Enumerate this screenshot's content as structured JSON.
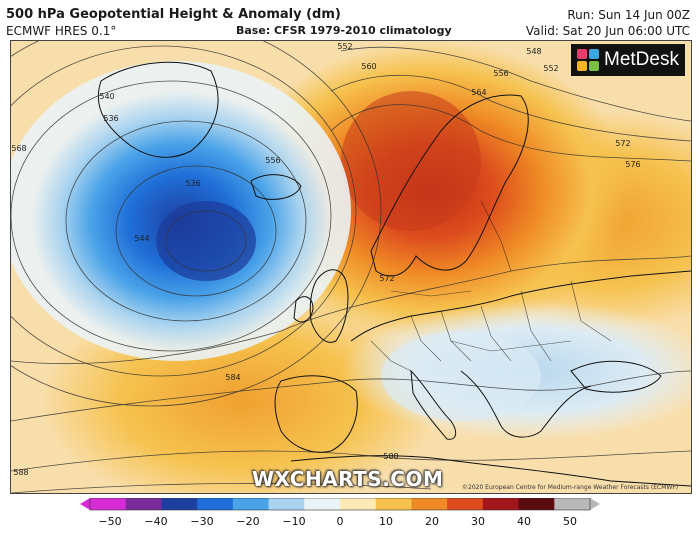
{
  "header": {
    "title": "500 hPa Geopotential Height & Anomaly (dm)",
    "model": "ECMWF HRES 0.1°",
    "base": "Base: CFSR 1979-2010 climatology",
    "run": "Run: Sun 14 Jun 00Z",
    "valid": "Valid: Sat 20 Jun 06:00 UTC"
  },
  "logo": {
    "text": "MetDesk",
    "colors": [
      "#e63e6d",
      "#3aa8e0",
      "#f7b529",
      "#7ac143"
    ]
  },
  "watermark": "WXCHARTS.COM",
  "copyright": "©2020 European Centre for Medium-range Weather Forecasts (ECMWF)",
  "contour_labels": [
    "552",
    "548",
    "552",
    "556",
    "560",
    "564",
    "572",
    "576",
    "540",
    "536",
    "568",
    "536",
    "544",
    "556",
    "572",
    "584",
    "588",
    "588"
  ],
  "colorbar": {
    "ticks": [
      "−50",
      "−40",
      "−30",
      "−20",
      "−10",
      "0",
      "10",
      "20",
      "30",
      "40",
      "50"
    ],
    "colors": [
      "#d62bd6",
      "#7a2a9a",
      "#1f3fa0",
      "#1f6fd8",
      "#4aa3e8",
      "#a9d3ef",
      "#eaf3f6",
      "#fbeab5",
      "#f6c24e",
      "#ef8a25",
      "#dc4a1d",
      "#a0161a",
      "#5a0c10",
      "#b8b8b8"
    ]
  }
}
